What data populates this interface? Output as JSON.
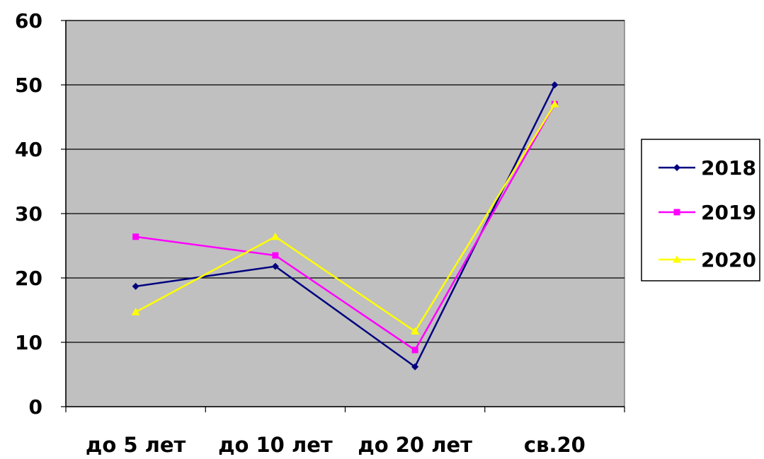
{
  "chart_data": {
    "type": "line",
    "categories": [
      "до 5 лет",
      "до 10 лет",
      "до 20 лет",
      "св.20"
    ],
    "ylim": [
      0,
      60
    ],
    "yticks": [
      "0",
      "10",
      "20",
      "30",
      "40",
      "50",
      "60"
    ],
    "grid": true,
    "legend_position": "right",
    "plot_background": "#c0c0c0",
    "series": [
      {
        "name": "2018",
        "color": "#000080",
        "marker": "diamond",
        "values": [
          18.7,
          21.8,
          6.2,
          50.0
        ]
      },
      {
        "name": "2019",
        "color": "#ff00ff",
        "marker": "square",
        "values": [
          26.4,
          23.5,
          8.8,
          47.0
        ]
      },
      {
        "name": "2020",
        "color": "#ffff00",
        "marker": "triangle",
        "values": [
          14.7,
          26.4,
          11.7,
          47.0
        ]
      }
    ]
  }
}
